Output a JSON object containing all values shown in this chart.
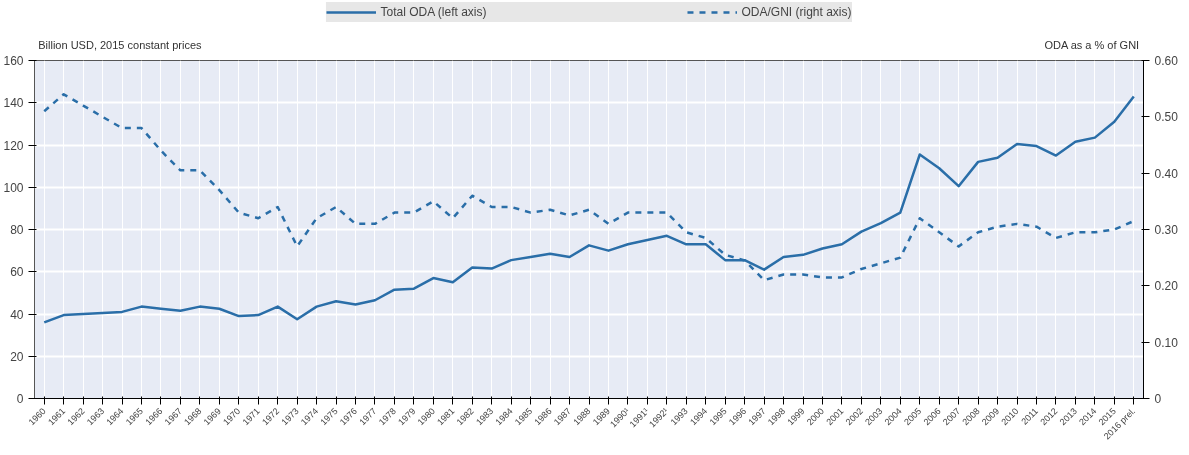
{
  "chart_data": {
    "type": "line",
    "categories": [
      "1960",
      "1961",
      "1962",
      "1963",
      "1964",
      "1965",
      "1966",
      "1967",
      "1968",
      "1969",
      "1970",
      "1971",
      "1972",
      "1973",
      "1974",
      "1975",
      "1976",
      "1977",
      "1978",
      "1979",
      "1980",
      "1981",
      "1982",
      "1983",
      "1984",
      "1985",
      "1986",
      "1987",
      "1988",
      "1989",
      "1990¹",
      "1991¹",
      "1992¹",
      "1993",
      "1994",
      "1995",
      "1996",
      "1997",
      "1998",
      "1999",
      "2000",
      "2001",
      "2002",
      "2003",
      "2004",
      "2005",
      "2006",
      "2007",
      "2008",
      "2009",
      "2010",
      "2011",
      "2012",
      "2013",
      "2014",
      "2015",
      "2016 prel."
    ],
    "series": [
      {
        "name": "Total ODA (left axis)",
        "color": "#2a6ea8",
        "line_style": "solid",
        "values": [
          36,
          39.5,
          40,
          40.5,
          41,
          43.5,
          42.5,
          41.5,
          43.5,
          42.5,
          39,
          39.5,
          43.5,
          37.5,
          43.5,
          46,
          44.5,
          46.5,
          51.5,
          52,
          57,
          55,
          62,
          61.5,
          65.5,
          67,
          68.5,
          67,
          72.5,
          70,
          73,
          75,
          77,
          73,
          73,
          65.5,
          65.5,
          61,
          67,
          68,
          71,
          73,
          79,
          83,
          88,
          115.5,
          109,
          100.5,
          112,
          114,
          120.5,
          119.5,
          115,
          121.5,
          123.5,
          131,
          143
        ]
      },
      {
        "name": "ODA/GNI (right axis)",
        "color": "#2a6ea8",
        "line_style": "dashed",
        "axis": "y2",
        "values": [
          0.51,
          0.54,
          0.52,
          0.5,
          0.48,
          0.48,
          0.44,
          0.405,
          0.405,
          0.37,
          0.33,
          0.32,
          0.34,
          0.27,
          0.32,
          0.34,
          0.31,
          0.31,
          0.33,
          0.33,
          0.35,
          0.32,
          0.36,
          0.34,
          0.34,
          0.33,
          0.335,
          0.325,
          0.335,
          0.31,
          0.33,
          0.33,
          0.33,
          0.295,
          0.285,
          0.255,
          0.245,
          0.21,
          0.22,
          0.22,
          0.215,
          0.215,
          0.23,
          0.24,
          0.25,
          0.32,
          0.295,
          0.27,
          0.295,
          0.305,
          0.31,
          0.305,
          0.285,
          0.295,
          0.295,
          0.3,
          0.315
        ]
      }
    ],
    "ylabel": "Billion USD, 2015 constant prices",
    "y2label": "ODA as a % of GNI",
    "ylim": [
      0,
      160
    ],
    "yticks": [
      0,
      20,
      40,
      60,
      80,
      100,
      120,
      140,
      160
    ],
    "y2lim": [
      0,
      0.6
    ],
    "y2ticks": [
      0,
      {
        "value": 0.1,
        "label": "0.10"
      },
      {
        "value": 0.2,
        "label": "0.20"
      },
      {
        "value": 0.3,
        "label": "0.30"
      },
      {
        "value": 0.4,
        "label": "0.40"
      },
      {
        "value": 0.5,
        "label": "0.50"
      },
      {
        "value": 0.6,
        "label": "0.60"
      }
    ],
    "grid": true,
    "legend": "top",
    "marker": "none"
  }
}
